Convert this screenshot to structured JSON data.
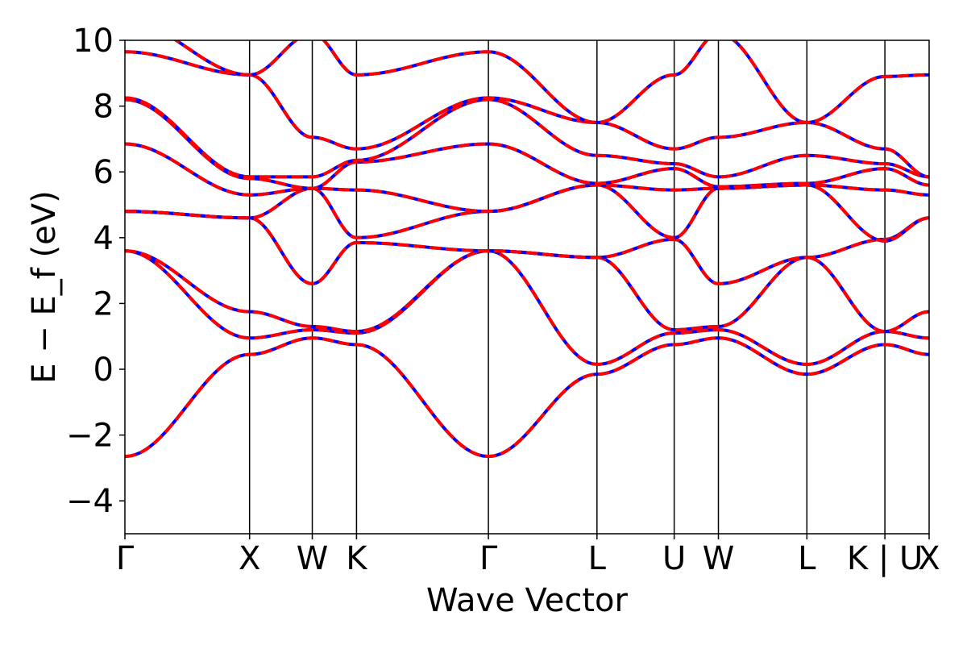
{
  "chart_data": {
    "type": "line",
    "title": "",
    "xlabel": "Wave Vector",
    "ylabel": "E − E_f (eV)",
    "ylim": [
      -5,
      10
    ],
    "y_ticks": [
      -4,
      -2,
      0,
      2,
      4,
      6,
      8,
      10
    ],
    "grid": false,
    "legend": "none",
    "colors": {
      "band_solid": "#0000ff",
      "band_dashed": "#ff0000",
      "kpath_line": "#000000"
    },
    "x_range": [
      0,
      1
    ],
    "kpoints": [
      {
        "label": "Γ",
        "x": 0.0
      },
      {
        "label": "X",
        "x": 0.155
      },
      {
        "label": "W",
        "x": 0.233
      },
      {
        "label": "K",
        "x": 0.288
      },
      {
        "label": "Γ",
        "x": 0.452
      },
      {
        "label": "L",
        "x": 0.587
      },
      {
        "label": "U",
        "x": 0.683
      },
      {
        "label": "W",
        "x": 0.738
      },
      {
        "label": "L",
        "x": 0.848
      },
      {
        "label": "K | U",
        "x": 0.945
      },
      {
        "label": "X",
        "x": 1.0
      }
    ],
    "bands": [
      [
        -2.65,
        0.45,
        0.95,
        0.75,
        -2.65,
        -0.15,
        0.75,
        0.95,
        -0.15,
        0.75,
        0.45
      ],
      [
        3.6,
        0.95,
        1.2,
        1.1,
        3.6,
        0.15,
        1.1,
        1.2,
        0.15,
        1.15,
        0.95
      ],
      [
        3.6,
        1.75,
        1.3,
        1.15,
        3.6,
        3.4,
        1.2,
        1.3,
        3.4,
        1.15,
        1.75
      ],
      [
        4.8,
        4.6,
        2.6,
        3.85,
        3.6,
        3.4,
        3.95,
        2.6,
        3.4,
        3.95,
        4.6
      ],
      [
        4.8,
        4.6,
        5.5,
        4.0,
        4.8,
        5.6,
        4.0,
        5.5,
        5.6,
        3.9,
        4.6
      ],
      [
        6.85,
        5.3,
        5.5,
        5.45,
        4.8,
        5.6,
        5.45,
        5.5,
        5.6,
        5.45,
        5.3
      ],
      [
        8.2,
        5.8,
        5.5,
        6.3,
        6.85,
        5.65,
        6.1,
        5.55,
        5.65,
        6.1,
        5.6
      ],
      [
        8.25,
        5.85,
        5.85,
        6.35,
        8.2,
        6.5,
        6.25,
        5.85,
        6.5,
        6.25,
        5.85
      ],
      [
        9.65,
        8.95,
        7.05,
        6.7,
        8.25,
        7.5,
        6.7,
        7.05,
        7.5,
        6.7,
        5.85
      ],
      [
        10.6,
        8.95,
        10.2,
        8.95,
        9.65,
        7.5,
        8.95,
        10.2,
        7.5,
        8.9,
        8.95
      ]
    ]
  }
}
